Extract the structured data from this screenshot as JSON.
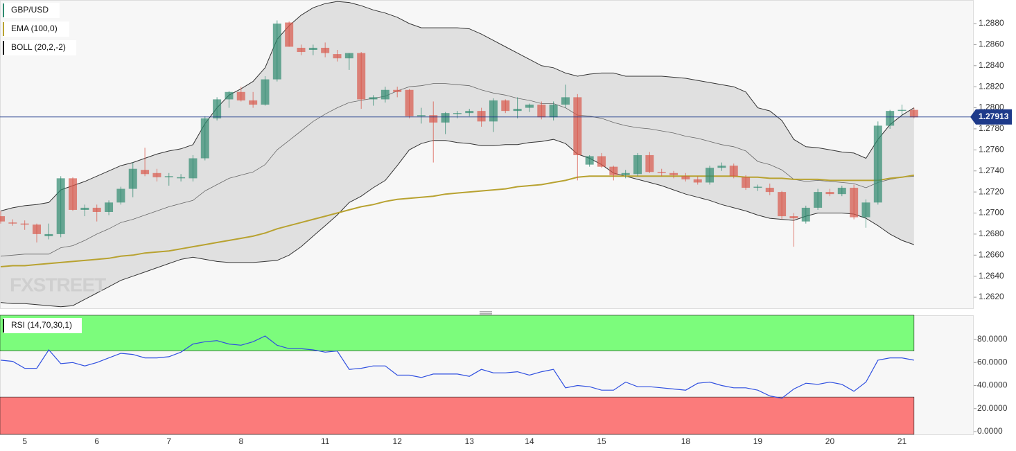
{
  "chart_data": [
    {
      "type": "candlestick",
      "categories": [
        null,
        null,
        "5",
        null,
        null,
        null,
        null,
        null,
        "6",
        null,
        null,
        null,
        null,
        null,
        "7",
        null,
        null,
        null,
        null,
        null,
        "8",
        null,
        null,
        null,
        null,
        null,
        null,
        "11",
        null,
        null,
        null,
        null,
        null,
        "12",
        null,
        null,
        null,
        null,
        null,
        "13",
        null,
        null,
        null,
        null,
        "14",
        null,
        null,
        null,
        null,
        null,
        "15",
        null,
        null,
        null,
        null,
        null,
        null,
        "18",
        null,
        null,
        null,
        null,
        null,
        "19",
        null,
        null,
        null,
        null,
        null,
        "20",
        null,
        null,
        null,
        null,
        null,
        "21",
        null
      ],
      "ylim": [
        1.26095,
        1.29024
      ],
      "yticks": [
        {
          "value": 1.262,
          "label": "1.2620"
        },
        {
          "value": 1.264,
          "label": "1.2640"
        },
        {
          "value": 1.266,
          "label": "1.2660"
        },
        {
          "value": 1.268,
          "label": "1.2680"
        },
        {
          "value": 1.27,
          "label": "1.2700"
        },
        {
          "value": 1.272,
          "label": "1.2720"
        },
        {
          "value": 1.274,
          "label": "1.2740"
        },
        {
          "value": 1.276,
          "label": "1.2760"
        },
        {
          "value": 1.278,
          "label": "1.2780"
        },
        {
          "value": 1.28,
          "label": "1.2800"
        },
        {
          "value": 1.282,
          "label": "1.2820"
        },
        {
          "value": 1.284,
          "label": "1.2840"
        },
        {
          "value": 1.286,
          "label": "1.2860"
        },
        {
          "value": 1.288,
          "label": "1.2880"
        }
      ],
      "last_price": 1.27913,
      "last_price_color": "#1e3a8a",
      "watermark": "FXSTREET",
      "series": [
        {
          "name": "GBP/USD",
          "up_color": "#2f8a6f",
          "down_color": "#d9574a",
          "open": [
            1.2697,
            1.2691,
            1.269,
            1.2689,
            1.2678,
            1.268,
            1.2733,
            1.2703,
            1.2705,
            1.2701,
            1.271,
            1.2723,
            1.2741,
            1.2738,
            1.2734,
            1.2734,
            1.2733,
            1.2752,
            1.279,
            1.2808,
            1.2815,
            1.2807,
            1.2803,
            1.2827,
            1.2881,
            1.2857,
            1.2855,
            1.2857,
            1.2851,
            1.2847,
            1.2852,
            1.2808,
            1.2808,
            1.2817,
            1.2817,
            1.2792,
            1.2793,
            1.2786,
            1.2795,
            1.2795,
            1.2797,
            1.2787,
            1.2807,
            1.2797,
            1.28,
            1.2803,
            1.2791,
            1.2803,
            1.281,
            1.2746,
            1.2754,
            1.2744,
            1.2736,
            1.2737,
            1.2755,
            1.2739,
            1.2738,
            1.2735,
            1.2732,
            1.2729,
            1.2743,
            1.2745,
            1.2734,
            1.2724,
            1.2724,
            1.272,
            1.2697,
            1.2692,
            1.2705,
            1.272,
            1.2718,
            1.2724,
            1.2696,
            1.271,
            1.2783,
            1.2797,
            1.2798
          ],
          "high": [
            1.2702,
            1.2694,
            1.2693,
            1.269,
            1.269,
            1.2735,
            1.2734,
            1.2708,
            1.2708,
            1.2712,
            1.2725,
            1.2748,
            1.2762,
            1.2742,
            1.2738,
            1.2737,
            1.2755,
            1.2792,
            1.281,
            1.2816,
            1.282,
            1.2815,
            1.283,
            1.2883,
            1.2882,
            1.286,
            1.286,
            1.2862,
            1.2855,
            1.2852,
            1.2853,
            1.2812,
            1.282,
            1.282,
            1.2818,
            1.28,
            1.2806,
            1.2796,
            1.2797,
            1.2799,
            1.28,
            1.2809,
            1.2808,
            1.281,
            1.2804,
            1.2806,
            1.2806,
            1.2822,
            1.2813,
            1.2755,
            1.2757,
            1.2745,
            1.2741,
            1.2757,
            1.2758,
            1.2742,
            1.274,
            1.2738,
            1.2735,
            1.2745,
            1.2748,
            1.2747,
            1.2736,
            1.2727,
            1.2728,
            1.2721,
            1.27,
            1.2707,
            1.2723,
            1.2723,
            1.2726,
            1.2727,
            1.2713,
            1.2787,
            1.2798,
            1.2803,
            1.28
          ],
          "low": [
            1.269,
            1.2688,
            1.2684,
            1.2672,
            1.2675,
            1.2677,
            1.2702,
            1.2697,
            1.2692,
            1.2698,
            1.2708,
            1.2715,
            1.2735,
            1.273,
            1.2726,
            1.273,
            1.273,
            1.275,
            1.2788,
            1.28,
            1.2806,
            1.28,
            1.2802,
            1.2825,
            1.2858,
            1.285,
            1.285,
            1.2848,
            1.2844,
            1.2836,
            1.2799,
            1.2802,
            1.2805,
            1.281,
            1.279,
            1.2785,
            1.2748,
            1.2775,
            1.279,
            1.2792,
            1.2782,
            1.2777,
            1.2795,
            1.279,
            1.2796,
            1.2789,
            1.2788,
            1.28,
            1.2731,
            1.2744,
            1.2743,
            1.2731,
            1.2733,
            1.2735,
            1.2738,
            1.2735,
            1.2733,
            1.273,
            1.2727,
            1.2727,
            1.274,
            1.2733,
            1.2722,
            1.2721,
            1.2717,
            1.2694,
            1.2668,
            1.269,
            1.2703,
            1.2716,
            1.2716,
            1.2694,
            1.2686,
            1.2708,
            1.278,
            1.2793,
            1.279
          ],
          "close": [
            1.2692,
            1.269,
            1.2689,
            1.268,
            1.268,
            1.2733,
            1.2703,
            1.2705,
            1.2701,
            1.271,
            1.2723,
            1.2742,
            1.2737,
            1.2734,
            1.2735,
            1.2734,
            1.2752,
            1.279,
            1.2808,
            1.2815,
            1.2807,
            1.2803,
            1.2827,
            1.288,
            1.2858,
            1.2853,
            1.2857,
            1.2852,
            1.2847,
            1.2852,
            1.2808,
            1.281,
            1.2817,
            1.2815,
            1.2792,
            1.2793,
            1.2786,
            1.2795,
            1.2795,
            1.2797,
            1.2787,
            1.2807,
            1.2797,
            1.2799,
            1.2803,
            1.2791,
            1.2803,
            1.281,
            1.2755,
            1.2754,
            1.2744,
            1.2736,
            1.2738,
            1.2755,
            1.2739,
            1.2738,
            1.2736,
            1.2732,
            1.2729,
            1.2743,
            1.2745,
            1.2735,
            1.2724,
            1.2725,
            1.272,
            1.2697,
            1.2695,
            1.2705,
            1.272,
            1.2718,
            1.2724,
            1.2696,
            1.271,
            1.2783,
            1.2797,
            1.2798,
            1.2791
          ]
        },
        {
          "name": "EMA (100,0)",
          "color": "#b8a230",
          "values": [
            1.2649,
            1.265,
            1.265,
            1.2651,
            1.2652,
            1.2653,
            1.2654,
            1.2655,
            1.2656,
            1.2657,
            1.2659,
            1.266,
            1.2662,
            1.2663,
            1.2664,
            1.2666,
            1.2668,
            1.267,
            1.2672,
            1.2674,
            1.2676,
            1.2678,
            1.2681,
            1.2685,
            1.2688,
            1.2691,
            1.2694,
            1.2697,
            1.27,
            1.2703,
            1.2706,
            1.2708,
            1.2711,
            1.2713,
            1.2714,
            1.2715,
            1.2716,
            1.2718,
            1.2719,
            1.272,
            1.2721,
            1.2722,
            1.2723,
            1.2725,
            1.2726,
            1.2727,
            1.2729,
            1.2731,
            1.2734,
            1.2735,
            1.2735,
            1.2735,
            1.2735,
            1.2735,
            1.2735,
            1.2735,
            1.2735,
            1.2735,
            1.2735,
            1.2735,
            1.2735,
            1.2735,
            1.2734,
            1.2734,
            1.2733,
            1.2733,
            1.2732,
            1.2732,
            1.2732,
            1.2731,
            1.2731,
            1.2731,
            1.2731,
            1.2731,
            1.2733,
            1.2734,
            1.2736
          ]
        },
        {
          "name": "BOLL (20,2,-2)",
          "color": "#333333",
          "fill": "#dcdcdc",
          "upper": [
            1.2702,
            1.2705,
            1.2707,
            1.2708,
            1.271,
            1.2722,
            1.2726,
            1.273,
            1.2735,
            1.274,
            1.2745,
            1.2748,
            1.2752,
            1.2756,
            1.2759,
            1.2761,
            1.2765,
            1.2785,
            1.28,
            1.2812,
            1.2818,
            1.2825,
            1.2838,
            1.2865,
            1.2878,
            1.2888,
            1.2895,
            1.2899,
            1.2901,
            1.29,
            1.2897,
            1.2893,
            1.289,
            1.2886,
            1.288,
            1.2876,
            1.2876,
            1.2876,
            1.2876,
            1.2875,
            1.287,
            1.2864,
            1.2858,
            1.2852,
            1.2846,
            1.284,
            1.2838,
            1.2833,
            1.283,
            1.2832,
            1.2833,
            1.2833,
            1.283,
            1.283,
            1.283,
            1.283,
            1.2829,
            1.2828,
            1.2826,
            1.2824,
            1.2822,
            1.282,
            1.2815,
            1.28,
            1.2797,
            1.2788,
            1.277,
            1.2763,
            1.2762,
            1.276,
            1.2758,
            1.2757,
            1.2752,
            1.277,
            1.2784,
            1.2793,
            1.28
          ],
          "middle": [
            1.2659,
            1.266,
            1.2661,
            1.2661,
            1.2661,
            1.2667,
            1.2669,
            1.2674,
            1.268,
            1.2685,
            1.2691,
            1.2694,
            1.2698,
            1.2702,
            1.2706,
            1.2709,
            1.2712,
            1.2721,
            1.2727,
            1.2733,
            1.2736,
            1.2739,
            1.2746,
            1.276,
            1.2769,
            1.2778,
            1.2787,
            1.2794,
            1.28,
            1.2805,
            1.2807,
            1.2809,
            1.2811,
            1.2816,
            1.282,
            1.2821,
            1.2823,
            1.2823,
            1.2822,
            1.2821,
            1.2817,
            1.2814,
            1.2812,
            1.2809,
            1.2807,
            1.2804,
            1.2804,
            1.28,
            1.2793,
            1.2792,
            1.279,
            1.2786,
            1.2783,
            1.2781,
            1.278,
            1.2778,
            1.2776,
            1.2773,
            1.2771,
            1.2768,
            1.2765,
            1.2763,
            1.2759,
            1.2749,
            1.2746,
            1.2741,
            1.2732,
            1.273,
            1.2731,
            1.273,
            1.2729,
            1.2728,
            1.2724,
            1.2729,
            1.2732,
            1.2734,
            1.2735
          ],
          "lower": [
            1.2615,
            1.2614,
            1.2614,
            1.2613,
            1.2612,
            1.2611,
            1.2612,
            1.2618,
            1.2624,
            1.263,
            1.2636,
            1.264,
            1.2644,
            1.2648,
            1.2652,
            1.2656,
            1.2658,
            1.2656,
            1.2654,
            1.2653,
            1.2653,
            1.2653,
            1.2654,
            1.2655,
            1.266,
            1.2668,
            1.2678,
            1.2688,
            1.2698,
            1.271,
            1.2716,
            1.2724,
            1.2731,
            1.2745,
            1.276,
            1.2766,
            1.2769,
            1.2769,
            1.2767,
            1.2766,
            1.2764,
            1.2764,
            1.2765,
            1.2765,
            1.2767,
            1.2768,
            1.277,
            1.2766,
            1.2756,
            1.2752,
            1.2746,
            1.2738,
            1.2735,
            1.2732,
            1.2729,
            1.2726,
            1.2722,
            1.2718,
            1.2715,
            1.2712,
            1.2708,
            1.2705,
            1.2702,
            1.2698,
            1.2695,
            1.2694,
            1.2693,
            1.2697,
            1.27,
            1.27,
            1.27,
            1.2699,
            1.2695,
            1.2688,
            1.268,
            1.2674,
            1.267
          ]
        }
      ]
    },
    {
      "type": "line",
      "ylim": [
        -2.4,
        101.05
      ],
      "yticks": [
        {
          "value": 0,
          "label": "0.0000"
        },
        {
          "value": 20,
          "label": "20.0000"
        },
        {
          "value": 40,
          "label": "40.0000"
        },
        {
          "value": 60,
          "label": "60.0000"
        },
        {
          "value": 80,
          "label": "80.0000"
        }
      ],
      "overbought": 70,
      "oversold": 30,
      "overbought_color": "#7cfc7c",
      "oversold_color": "#fb7b7b",
      "series": [
        {
          "name": "RSI (14,70,30,1)",
          "color": "#2f4fe0",
          "values": [
            62,
            61,
            55,
            55,
            71,
            59,
            60,
            57,
            60,
            64,
            68,
            67,
            64,
            64,
            65,
            69,
            76,
            78,
            79,
            76,
            75,
            78,
            83,
            75,
            72,
            72,
            71,
            69,
            70,
            54,
            55,
            57,
            57,
            49,
            49,
            47,
            50,
            50,
            50,
            48,
            54,
            51,
            51,
            52,
            49,
            52,
            54,
            38,
            40,
            39,
            36,
            36,
            43,
            39,
            39,
            38,
            37,
            36,
            42,
            43,
            40,
            38,
            38,
            36,
            31,
            29,
            37,
            42,
            41,
            43,
            41,
            35,
            43,
            62,
            64,
            64,
            62
          ]
        }
      ]
    }
  ]
}
